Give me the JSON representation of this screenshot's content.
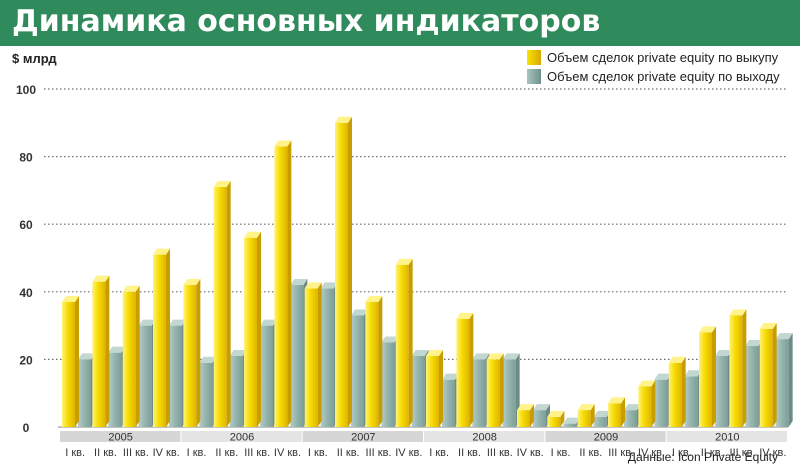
{
  "title": "Динамика основных индикаторов",
  "unit": "$ млрд",
  "source": "Данные: Icon Private Equity",
  "legend": [
    {
      "label": "Объем сделок private equity по выкупу",
      "color": "#f2d200"
    },
    {
      "label": "Объем сделок private equity по выходу",
      "color": "#8fb0a9"
    }
  ],
  "chart_data": {
    "type": "bar",
    "title": "Динамика основных индикаторов",
    "ylabel": "$ млрд",
    "ylim": [
      0,
      100
    ],
    "yticks": [
      0,
      20,
      40,
      60,
      80,
      100
    ],
    "grid": true,
    "legend_position": "top-right",
    "quarter_labels": [
      "I кв.",
      "II кв.",
      "III кв.",
      "IV кв."
    ],
    "years": [
      "2005",
      "2006",
      "2007",
      "2008",
      "2009",
      "2010"
    ],
    "categories": [
      "I кв. 2005",
      "II кв. 2005",
      "III кв. 2005",
      "IV кв. 2005",
      "I кв. 2006",
      "II кв. 2006",
      "III кв. 2006",
      "IV кв. 2006",
      "I кв. 2007",
      "II кв. 2007",
      "III кв. 2007",
      "IV кв. 2007",
      "I кв. 2008",
      "II кв. 2008",
      "III кв. 2008",
      "IV кв. 2008",
      "I кв. 2009",
      "II кв. 2009",
      "III кв. 2009",
      "IV кв. 2009",
      "I кв. 2010",
      "II кв. 2010",
      "III кв. 2010",
      "IV кв. 2010"
    ],
    "series": [
      {
        "name": "Объем сделок private equity по выкупу",
        "color": "#f2d200",
        "values": [
          37,
          43,
          40,
          51,
          42,
          71,
          56,
          83,
          41,
          90,
          37,
          48,
          21,
          32,
          20,
          5,
          3,
          5,
          7,
          12,
          19,
          28,
          33,
          29
        ]
      },
      {
        "name": "Объем сделок private equity по выходу",
        "color": "#8fb0a9",
        "values": [
          20,
          22,
          30,
          30,
          19,
          21,
          30,
          42,
          41,
          33,
          25,
          21,
          14,
          20,
          20,
          5,
          1,
          3,
          5,
          14,
          15,
          21,
          24,
          26
        ]
      }
    ]
  }
}
